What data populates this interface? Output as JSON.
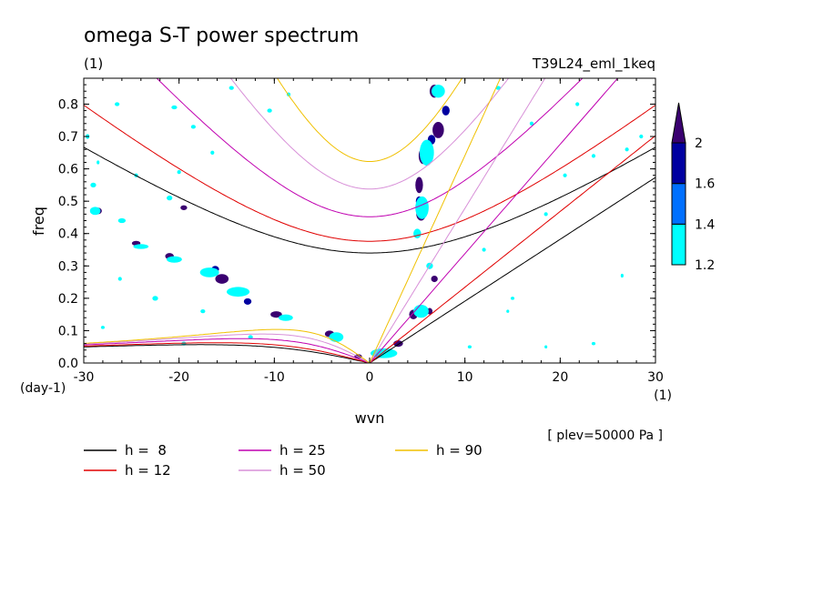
{
  "chart_data": {
    "type": "heatmap",
    "title": "omega S-T power spectrum",
    "subtitle_left": "(1)",
    "subtitle_right": "T39L24_eml_1keq",
    "xlabel": "wvn",
    "ylabel": "freq",
    "x_unit": "(1)",
    "y_unit": "(day-1)",
    "annotation": "[ plev=50000 Pa ]",
    "xlim": [
      -30,
      30
    ],
    "ylim": [
      0,
      0.88
    ],
    "x_ticks": [
      -30,
      -20,
      -10,
      0,
      10,
      20,
      30
    ],
    "y_ticks": [
      0.0,
      0.1,
      0.2,
      0.3,
      0.4,
      0.5,
      0.6,
      0.7,
      0.8
    ],
    "x_tick_labels": [
      "-30",
      "-20",
      "-10",
      "0",
      "10",
      "20",
      "30"
    ],
    "y_tick_labels": [
      "0.0",
      "0.1",
      "0.2",
      "0.3",
      "0.4",
      "0.5",
      "0.6",
      "0.7",
      "0.8"
    ],
    "colorbar": {
      "levels": [
        1.2,
        1.4,
        1.6,
        2
      ],
      "labels": [
        "1.2",
        "1.4",
        "1.6",
        "2"
      ],
      "colors": [
        "#00ffff",
        "#0070ff",
        "#0000a0",
        "#3a0070"
      ]
    },
    "legend": [
      {
        "label": "h =  8",
        "h": 8,
        "color": "#000000"
      },
      {
        "label": "h = 12",
        "h": 12,
        "color": "#e00000"
      },
      {
        "label": "h = 25",
        "h": 25,
        "color": "#c000b0"
      },
      {
        "label": "h = 50",
        "h": 50,
        "color": "#d890d8"
      },
      {
        "label": "h = 90",
        "h": 90,
        "color": "#f0c000"
      }
    ],
    "blobs": [
      {
        "x": 6.8,
        "y": 0.84,
        "w": 1.0,
        "h": 0.04,
        "level": 2
      },
      {
        "x": 7.2,
        "y": 0.72,
        "w": 1.2,
        "h": 0.05,
        "level": 2
      },
      {
        "x": 5.6,
        "y": 0.64,
        "w": 0.9,
        "h": 0.05,
        "level": 2
      },
      {
        "x": 5.2,
        "y": 0.55,
        "w": 0.8,
        "h": 0.05,
        "level": 2
      },
      {
        "x": 5.4,
        "y": 0.46,
        "w": 1.0,
        "h": 0.04,
        "level": 2
      },
      {
        "x": 6.8,
        "y": 0.26,
        "w": 0.7,
        "h": 0.02,
        "level": 2
      },
      {
        "x": 4.6,
        "y": 0.15,
        "w": 0.9,
        "h": 0.03,
        "level": 2
      },
      {
        "x": 6.3,
        "y": 0.16,
        "w": 0.6,
        "h": 0.02,
        "level": 2
      },
      {
        "x": 1.2,
        "y": 0.03,
        "w": 2.2,
        "h": 0.02,
        "level": 2
      },
      {
        "x": 3.0,
        "y": 0.06,
        "w": 1.0,
        "h": 0.02,
        "level": 2
      },
      {
        "x": -4.2,
        "y": 0.09,
        "w": 1.0,
        "h": 0.02,
        "level": 2
      },
      {
        "x": -1.2,
        "y": 0.02,
        "w": 0.8,
        "h": 0.015,
        "level": 2
      },
      {
        "x": -15.5,
        "y": 0.26,
        "w": 1.4,
        "h": 0.03,
        "level": 2
      },
      {
        "x": -13.5,
        "y": 0.22,
        "w": 1.2,
        "h": 0.02,
        "level": 2
      },
      {
        "x": -9.8,
        "y": 0.15,
        "w": 1.2,
        "h": 0.02,
        "level": 2
      },
      {
        "x": -21.0,
        "y": 0.33,
        "w": 0.9,
        "h": 0.02,
        "level": 2
      },
      {
        "x": -24.5,
        "y": 0.37,
        "w": 0.9,
        "h": 0.015,
        "level": 2
      },
      {
        "x": -28.5,
        "y": 0.47,
        "w": 0.8,
        "h": 0.02,
        "level": 2
      },
      {
        "x": -19.5,
        "y": 0.48,
        "w": 0.7,
        "h": 0.015,
        "level": 2
      },
      {
        "x": 8.0,
        "y": 0.78,
        "w": 0.8,
        "h": 0.03,
        "level": 1.6
      },
      {
        "x": 6.5,
        "y": 0.69,
        "w": 0.8,
        "h": 0.03,
        "level": 1.6
      },
      {
        "x": 5.2,
        "y": 0.5,
        "w": 0.7,
        "h": 0.03,
        "level": 1.6
      },
      {
        "x": -16.2,
        "y": 0.29,
        "w": 0.8,
        "h": 0.02,
        "level": 1.6
      },
      {
        "x": -12.8,
        "y": 0.19,
        "w": 0.8,
        "h": 0.02,
        "level": 1.6
      },
      {
        "x": 7.2,
        "y": 0.84,
        "w": 1.4,
        "h": 0.04,
        "level": 1.2
      },
      {
        "x": 6.0,
        "y": 0.65,
        "w": 1.5,
        "h": 0.08,
        "level": 1.2
      },
      {
        "x": 5.5,
        "y": 0.48,
        "w": 1.4,
        "h": 0.07,
        "level": 1.2
      },
      {
        "x": 5.0,
        "y": 0.4,
        "w": 0.8,
        "h": 0.03,
        "level": 1.2
      },
      {
        "x": 6.3,
        "y": 0.3,
        "w": 0.7,
        "h": 0.02,
        "level": 1.2
      },
      {
        "x": 5.4,
        "y": 0.16,
        "w": 1.6,
        "h": 0.04,
        "level": 1.2
      },
      {
        "x": 1.5,
        "y": 0.03,
        "w": 2.8,
        "h": 0.03,
        "level": 1.2
      },
      {
        "x": -3.5,
        "y": 0.08,
        "w": 1.5,
        "h": 0.03,
        "level": 1.2
      },
      {
        "x": -8.8,
        "y": 0.14,
        "w": 1.5,
        "h": 0.02,
        "level": 1.2
      },
      {
        "x": -13.8,
        "y": 0.22,
        "w": 2.4,
        "h": 0.03,
        "level": 1.2
      },
      {
        "x": -16.8,
        "y": 0.28,
        "w": 2.0,
        "h": 0.03,
        "level": 1.2
      },
      {
        "x": -20.5,
        "y": 0.32,
        "w": 1.6,
        "h": 0.02,
        "level": 1.2
      },
      {
        "x": -24.0,
        "y": 0.36,
        "w": 1.6,
        "h": 0.015,
        "level": 1.2
      },
      {
        "x": -28.8,
        "y": 0.47,
        "w": 1.1,
        "h": 0.025,
        "level": 1.2
      },
      {
        "x": -29.0,
        "y": 0.55,
        "w": 0.6,
        "h": 0.015,
        "level": 1.2
      },
      {
        "x": -29.6,
        "y": 0.7,
        "w": 0.4,
        "h": 0.015,
        "level": 1.2
      },
      {
        "x": -26.0,
        "y": 0.44,
        "w": 0.8,
        "h": 0.015,
        "level": 1.2
      },
      {
        "x": -21.0,
        "y": 0.51,
        "w": 0.6,
        "h": 0.015,
        "level": 1.2
      },
      {
        "x": -22.5,
        "y": 0.2,
        "w": 0.6,
        "h": 0.015,
        "level": 1.2
      },
      {
        "x": -17.5,
        "y": 0.16,
        "w": 0.5,
        "h": 0.012,
        "level": 1.2
      },
      {
        "x": -19.5,
        "y": 0.06,
        "w": 0.5,
        "h": 0.012,
        "level": 1.2
      },
      {
        "x": -12.5,
        "y": 0.08,
        "w": 0.5,
        "h": 0.012,
        "level": 1.2
      },
      {
        "x": -18.5,
        "y": 0.73,
        "w": 0.5,
        "h": 0.012,
        "level": 1.2
      },
      {
        "x": -10.5,
        "y": 0.78,
        "w": 0.5,
        "h": 0.012,
        "level": 1.2
      },
      {
        "x": -14.5,
        "y": 0.85,
        "w": 0.5,
        "h": 0.012,
        "level": 1.2
      },
      {
        "x": -20.5,
        "y": 0.79,
        "w": 0.6,
        "h": 0.012,
        "level": 1.2
      },
      {
        "x": -26.5,
        "y": 0.8,
        "w": 0.5,
        "h": 0.012,
        "level": 1.2
      },
      {
        "x": -20.0,
        "y": 0.59,
        "w": 0.4,
        "h": 0.012,
        "level": 1.2
      },
      {
        "x": -16.5,
        "y": 0.65,
        "w": 0.4,
        "h": 0.012,
        "level": 1.2
      },
      {
        "x": 13.5,
        "y": 0.85,
        "w": 0.5,
        "h": 0.012,
        "level": 1.2
      },
      {
        "x": 17.0,
        "y": 0.74,
        "w": 0.4,
        "h": 0.012,
        "level": 1.2
      },
      {
        "x": 23.5,
        "y": 0.64,
        "w": 0.4,
        "h": 0.012,
        "level": 1.2
      },
      {
        "x": 21.8,
        "y": 0.8,
        "w": 0.4,
        "h": 0.012,
        "level": 1.2
      },
      {
        "x": 26.5,
        "y": 0.27,
        "w": 0.3,
        "h": 0.012,
        "level": 1.2
      },
      {
        "x": 23.5,
        "y": 0.06,
        "w": 0.4,
        "h": 0.01,
        "level": 1.2
      },
      {
        "x": 15.0,
        "y": 0.2,
        "w": 0.4,
        "h": 0.01,
        "level": 1.2
      },
      {
        "x": 20.5,
        "y": 0.58,
        "w": 0.4,
        "h": 0.012,
        "level": 1.2
      },
      {
        "x": 27.0,
        "y": 0.66,
        "w": 0.4,
        "h": 0.012,
        "level": 1.2
      },
      {
        "x": 28.5,
        "y": 0.7,
        "w": 0.4,
        "h": 0.012,
        "level": 1.2
      },
      {
        "x": 18.5,
        "y": 0.46,
        "w": 0.4,
        "h": 0.012,
        "level": 1.2
      },
      {
        "x": 12.0,
        "y": 0.35,
        "w": 0.4,
        "h": 0.012,
        "level": 1.2
      },
      {
        "x": 14.5,
        "y": 0.16,
        "w": 0.3,
        "h": 0.01,
        "level": 1.2
      },
      {
        "x": 10.5,
        "y": 0.05,
        "w": 0.4,
        "h": 0.01,
        "level": 1.2
      },
      {
        "x": 18.5,
        "y": 0.05,
        "w": 0.3,
        "h": 0.01,
        "level": 1.2
      },
      {
        "x": -24.5,
        "y": 0.58,
        "w": 0.4,
        "h": 0.012,
        "level": 1.2
      },
      {
        "x": -28.5,
        "y": 0.62,
        "w": 0.3,
        "h": 0.012,
        "level": 1.2
      },
      {
        "x": -8.5,
        "y": 0.83,
        "w": 0.4,
        "h": 0.012,
        "level": 1.2
      },
      {
        "x": -26.2,
        "y": 0.26,
        "w": 0.4,
        "h": 0.012,
        "level": 1.2
      },
      {
        "x": -28.0,
        "y": 0.11,
        "w": 0.4,
        "h": 0.01,
        "level": 1.2
      }
    ]
  }
}
